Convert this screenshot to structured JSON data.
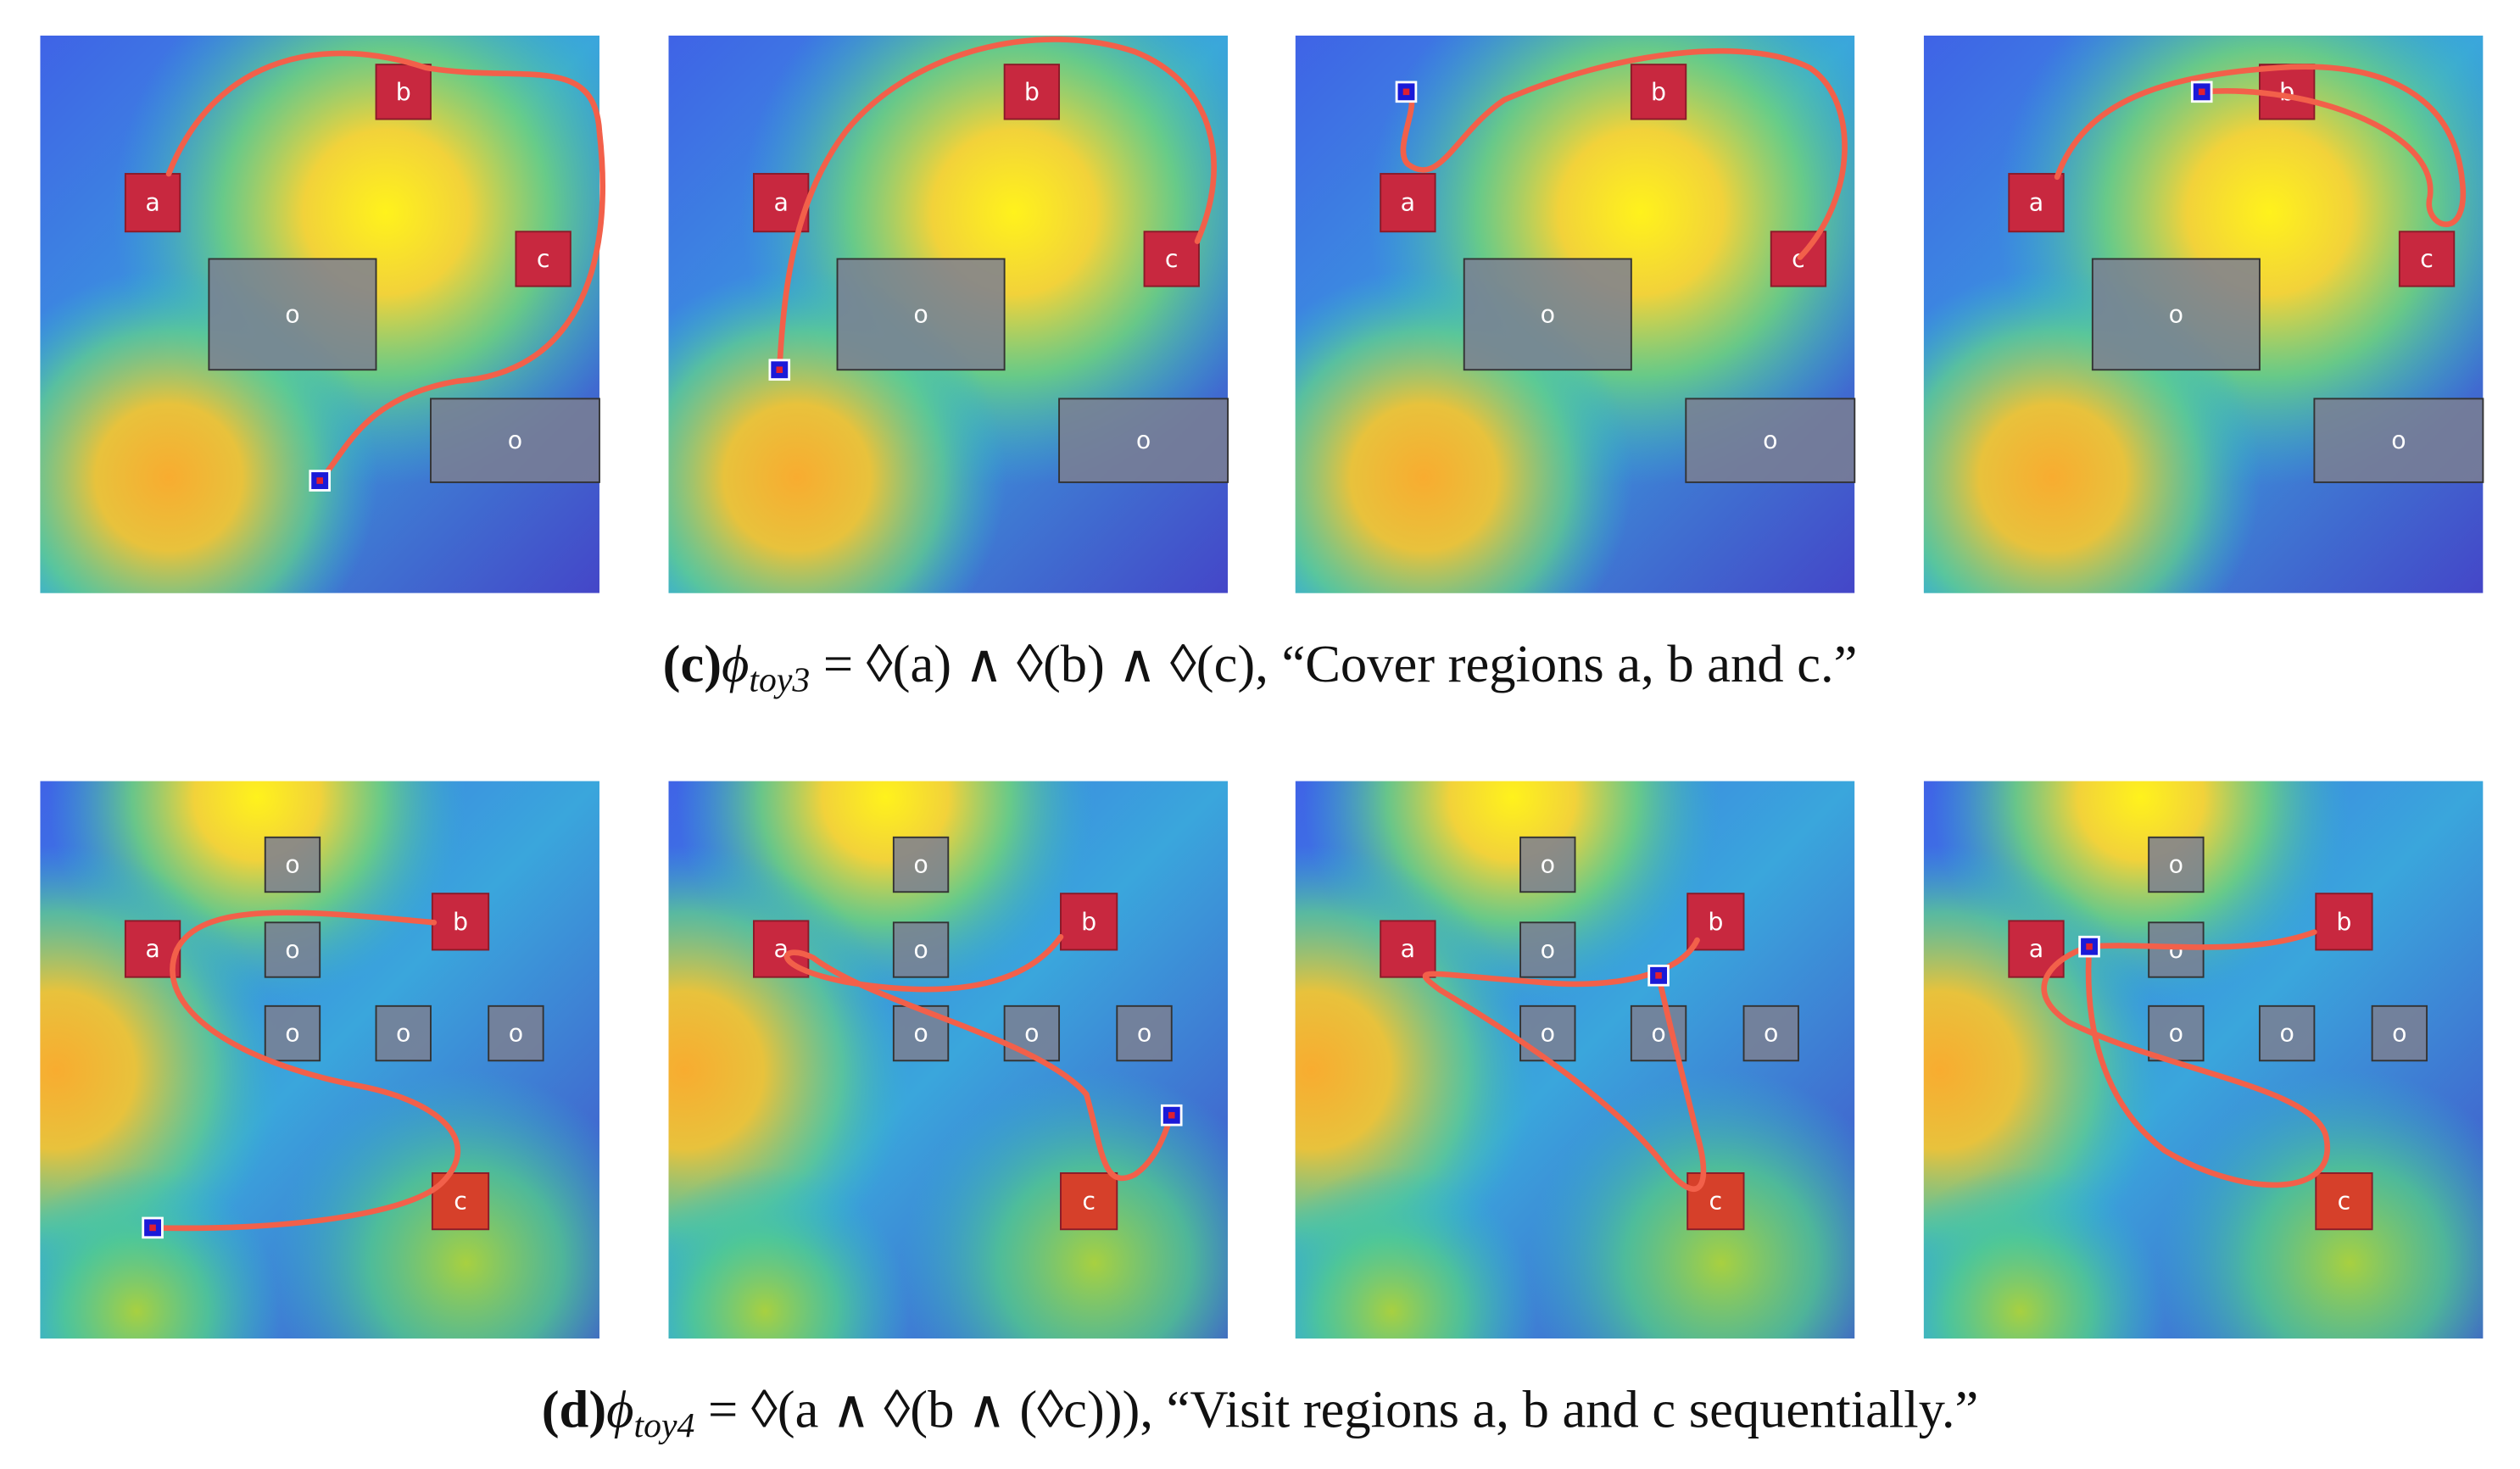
{
  "panels": [
    {
      "label": "(c)",
      "symbol": "ϕ",
      "subscript": "toy3",
      "formula": " = ◊(a) ∧ ◊(b) ∧ ◊(c), “Cover regions a, b and c.”",
      "maps": [
        {
          "regions": [
            {
              "label": "a"
            },
            {
              "label": "b"
            },
            {
              "label": "c"
            },
            {
              "label": "o"
            },
            {
              "label": "o"
            }
          ]
        },
        {
          "regions": [
            {
              "label": "a"
            },
            {
              "label": "b"
            },
            {
              "label": "c"
            },
            {
              "label": "o"
            },
            {
              "label": "o"
            }
          ]
        },
        {
          "regions": [
            {
              "label": "a"
            },
            {
              "label": "b"
            },
            {
              "label": "c"
            },
            {
              "label": "o"
            },
            {
              "label": "o"
            }
          ]
        },
        {
          "regions": [
            {
              "label": "a"
            },
            {
              "label": "b"
            },
            {
              "label": "c"
            },
            {
              "label": "o"
            },
            {
              "label": "o"
            }
          ]
        }
      ]
    },
    {
      "label": "(d)",
      "symbol": "ϕ",
      "subscript": "toy4",
      "formula": " = ◊(a ∧ ◊(b ∧ (◊c))), “Visit regions a, b and c sequentially.”",
      "maps": [
        {
          "regions": [
            {
              "label": "a"
            },
            {
              "label": "b"
            },
            {
              "label": "c"
            },
            {
              "label": "o"
            },
            {
              "label": "o"
            },
            {
              "label": "o"
            },
            {
              "label": "o"
            },
            {
              "label": "o"
            }
          ]
        },
        {
          "regions": [
            {
              "label": "a"
            },
            {
              "label": "b"
            },
            {
              "label": "c"
            },
            {
              "label": "o"
            },
            {
              "label": "o"
            },
            {
              "label": "o"
            },
            {
              "label": "o"
            },
            {
              "label": "o"
            }
          ]
        },
        {
          "regions": [
            {
              "label": "a"
            },
            {
              "label": "b"
            },
            {
              "label": "c"
            },
            {
              "label": "o"
            },
            {
              "label": "o"
            },
            {
              "label": "o"
            },
            {
              "label": "o"
            },
            {
              "label": "o"
            }
          ]
        },
        {
          "regions": [
            {
              "label": "a"
            },
            {
              "label": "b"
            },
            {
              "label": "c"
            },
            {
              "label": "o"
            },
            {
              "label": "o"
            },
            {
              "label": "o"
            },
            {
              "label": "o"
            },
            {
              "label": "o"
            }
          ]
        }
      ]
    }
  ]
}
